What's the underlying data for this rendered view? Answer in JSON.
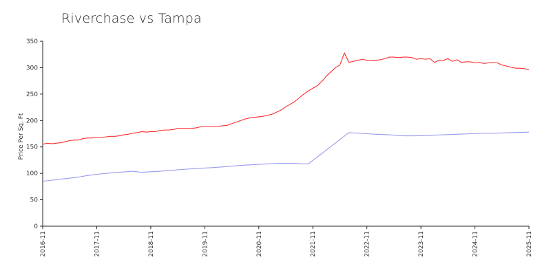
{
  "chart_data": {
    "type": "line",
    "title": "Riverchase vs Tampa",
    "xlabel": "",
    "ylabel": "Price Per Sq. Ft",
    "ylim": [
      0,
      350
    ],
    "yticks": [
      0,
      50,
      100,
      150,
      200,
      250,
      300,
      350
    ],
    "xlim": [
      2016.833,
      2025.833
    ],
    "xticks": [
      {
        "x": 2016.833,
        "label": "2016-11"
      },
      {
        "x": 2017.833,
        "label": "2017-11"
      },
      {
        "x": 2018.833,
        "label": "2018-11"
      },
      {
        "x": 2019.833,
        "label": "2019-11"
      },
      {
        "x": 2020.833,
        "label": "2020-11"
      },
      {
        "x": 2021.833,
        "label": "2021-11"
      },
      {
        "x": 2022.833,
        "label": "2022-11"
      },
      {
        "x": 2023.833,
        "label": "2023-11"
      },
      {
        "x": 2024.833,
        "label": "2024-11"
      },
      {
        "x": 2025.833,
        "label": "2025-11"
      }
    ],
    "grid": false,
    "legend": "none",
    "series": [
      {
        "color": "#ff2a2a",
        "points": [
          [
            2016.833,
            155
          ],
          [
            2016.917,
            157
          ],
          [
            2017.0,
            156
          ],
          [
            2017.083,
            157
          ],
          [
            2017.167,
            158
          ],
          [
            2017.25,
            160
          ],
          [
            2017.333,
            162
          ],
          [
            2017.417,
            163
          ],
          [
            2017.5,
            163
          ],
          [
            2017.583,
            166
          ],
          [
            2017.667,
            167
          ],
          [
            2017.75,
            167
          ],
          [
            2017.833,
            168
          ],
          [
            2017.917,
            168
          ],
          [
            2018.0,
            169
          ],
          [
            2018.083,
            170
          ],
          [
            2018.167,
            170
          ],
          [
            2018.25,
            171
          ],
          [
            2018.333,
            173
          ],
          [
            2018.417,
            174
          ],
          [
            2018.5,
            176
          ],
          [
            2018.583,
            177
          ],
          [
            2018.667,
            179
          ],
          [
            2018.75,
            178
          ],
          [
            2018.833,
            179
          ],
          [
            2018.917,
            179
          ],
          [
            2019.0,
            181
          ],
          [
            2019.083,
            182
          ],
          [
            2019.167,
            182
          ],
          [
            2019.25,
            183
          ],
          [
            2019.333,
            185
          ],
          [
            2019.417,
            185
          ],
          [
            2019.5,
            185
          ],
          [
            2019.583,
            185
          ],
          [
            2019.667,
            186
          ],
          [
            2019.75,
            188
          ],
          [
            2019.833,
            188
          ],
          [
            2019.917,
            188
          ],
          [
            2020.0,
            188
          ],
          [
            2020.083,
            189
          ],
          [
            2020.167,
            190
          ],
          [
            2020.25,
            191
          ],
          [
            2020.333,
            194
          ],
          [
            2020.417,
            197
          ],
          [
            2020.5,
            200
          ],
          [
            2020.583,
            203
          ],
          [
            2020.667,
            205
          ],
          [
            2020.75,
            206
          ],
          [
            2020.833,
            207
          ],
          [
            2020.917,
            208
          ],
          [
            2021.0,
            210
          ],
          [
            2021.083,
            212
          ],
          [
            2021.167,
            216
          ],
          [
            2021.25,
            220
          ],
          [
            2021.333,
            226
          ],
          [
            2021.417,
            231
          ],
          [
            2021.5,
            236
          ],
          [
            2021.583,
            243
          ],
          [
            2021.667,
            250
          ],
          [
            2021.75,
            256
          ],
          [
            2021.833,
            261
          ],
          [
            2021.917,
            266
          ],
          [
            2022.0,
            274
          ],
          [
            2022.083,
            284
          ],
          [
            2022.167,
            292
          ],
          [
            2022.25,
            300
          ],
          [
            2022.333,
            305
          ],
          [
            2022.417,
            328
          ],
          [
            2022.5,
            310
          ],
          [
            2022.583,
            312
          ],
          [
            2022.667,
            314
          ],
          [
            2022.75,
            316
          ],
          [
            2022.833,
            314
          ],
          [
            2022.917,
            314
          ],
          [
            2023.0,
            314
          ],
          [
            2023.083,
            315
          ],
          [
            2023.167,
            317
          ],
          [
            2023.25,
            320
          ],
          [
            2023.333,
            320
          ],
          [
            2023.417,
            319
          ],
          [
            2023.5,
            320
          ],
          [
            2023.583,
            320
          ],
          [
            2023.667,
            319
          ],
          [
            2023.75,
            316
          ],
          [
            2023.833,
            317
          ],
          [
            2023.917,
            316
          ],
          [
            2024.0,
            317
          ],
          [
            2024.083,
            310
          ],
          [
            2024.167,
            314
          ],
          [
            2024.25,
            314
          ],
          [
            2024.333,
            317
          ],
          [
            2024.417,
            312
          ],
          [
            2024.5,
            315
          ],
          [
            2024.583,
            310
          ],
          [
            2024.667,
            311
          ],
          [
            2024.75,
            311
          ],
          [
            2024.833,
            309
          ],
          [
            2024.917,
            310
          ],
          [
            2025.0,
            308
          ],
          [
            2025.083,
            309
          ],
          [
            2025.167,
            310
          ],
          [
            2025.25,
            309
          ],
          [
            2025.333,
            305
          ],
          [
            2025.417,
            303
          ],
          [
            2025.5,
            301
          ],
          [
            2025.583,
            299
          ],
          [
            2025.667,
            299
          ],
          [
            2025.75,
            298
          ],
          [
            2025.833,
            296
          ]
        ]
      },
      {
        "color": "#9999ee",
        "points": [
          [
            2016.833,
            85
          ],
          [
            2017.0,
            87
          ],
          [
            2017.25,
            90
          ],
          [
            2017.5,
            93
          ],
          [
            2017.667,
            96
          ],
          [
            2017.833,
            98
          ],
          [
            2018.0,
            100
          ],
          [
            2018.25,
            102
          ],
          [
            2018.5,
            104
          ],
          [
            2018.667,
            102
          ],
          [
            2018.833,
            103
          ],
          [
            2019.0,
            104
          ],
          [
            2019.25,
            106
          ],
          [
            2019.5,
            108
          ],
          [
            2019.833,
            110
          ],
          [
            2020.0,
            111
          ],
          [
            2020.25,
            113
          ],
          [
            2020.5,
            115
          ],
          [
            2020.833,
            117
          ],
          [
            2021.0,
            118
          ],
          [
            2021.25,
            119
          ],
          [
            2021.5,
            119
          ],
          [
            2021.583,
            118
          ],
          [
            2021.75,
            118
          ],
          [
            2022.5,
            177
          ],
          [
            2022.833,
            175
          ],
          [
            2023.0,
            174
          ],
          [
            2023.25,
            173
          ],
          [
            2023.5,
            171
          ],
          [
            2023.75,
            171
          ],
          [
            2024.0,
            172
          ],
          [
            2024.25,
            173
          ],
          [
            2024.5,
            174
          ],
          [
            2024.75,
            175
          ],
          [
            2025.0,
            176
          ],
          [
            2025.25,
            176
          ],
          [
            2025.5,
            177
          ],
          [
            2025.833,
            178
          ]
        ]
      }
    ]
  }
}
